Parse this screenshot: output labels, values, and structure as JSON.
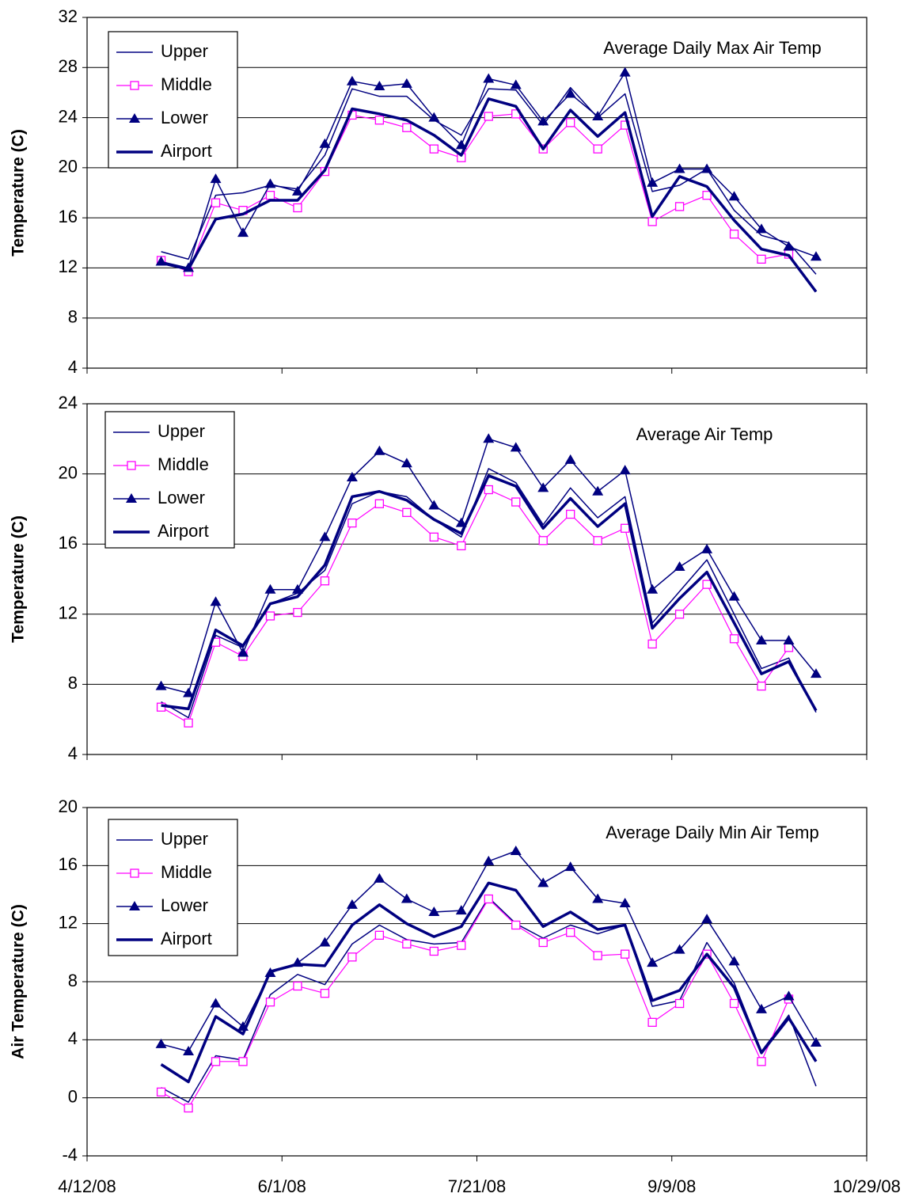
{
  "chart_data": [
    {
      "type": "line",
      "title": "Average Daily Max Air Temp",
      "ylabel": "Temperature (C)",
      "x": [
        "5/1/08",
        "5/8/08",
        "5/15/08",
        "5/22/08",
        "5/29/08",
        "6/5/08",
        "6/12/08",
        "6/19/08",
        "6/26/08",
        "7/3/08",
        "7/10/08",
        "7/17/08",
        "7/24/08",
        "7/31/08",
        "8/7/08",
        "8/14/08",
        "8/21/08",
        "8/28/08",
        "9/4/08",
        "9/11/08",
        "9/18/08",
        "9/25/08",
        "10/2/08",
        "10/9/08",
        "10/16/08"
      ],
      "xlim": [
        "4/12/08",
        "10/29/08"
      ],
      "xticks": [
        "4/12/08",
        "6/1/08",
        "7/21/08",
        "9/9/08",
        "10/29/08"
      ],
      "ylim": [
        4,
        32
      ],
      "yticks": [
        4,
        8,
        12,
        16,
        20,
        24,
        28,
        32
      ],
      "grid": true,
      "series": [
        {
          "name": "Upper",
          "color": "#000080",
          "marker": "none",
          "line_width": 1.5,
          "values": [
            13.3,
            12.7,
            17.8,
            18.0,
            18.6,
            18.3,
            21.0,
            26.3,
            25.7,
            25.7,
            23.8,
            22.6,
            26.3,
            26.2,
            23.4,
            26.4,
            24.0,
            25.9,
            18.1,
            18.6,
            19.9,
            16.6,
            14.6,
            14.0,
            11.5
          ]
        },
        {
          "name": "Middle",
          "color": "#ff00ff",
          "marker": "square",
          "line_width": 1.2,
          "values": [
            12.6,
            11.7,
            17.2,
            16.6,
            17.8,
            16.8,
            19.7,
            24.2,
            23.8,
            23.2,
            21.5,
            20.8,
            24.1,
            24.3,
            21.5,
            23.6,
            21.5,
            23.4,
            15.7,
            16.9,
            17.8,
            14.7,
            12.7,
            13.1,
            null
          ]
        },
        {
          "name": "Lower",
          "color": "#000080",
          "marker": "triangle",
          "line_width": 1.5,
          "values": [
            12.5,
            12.0,
            19.1,
            14.8,
            18.7,
            18.1,
            21.9,
            26.9,
            26.5,
            26.7,
            24.0,
            21.8,
            27.1,
            26.6,
            23.7,
            25.9,
            24.1,
            27.6,
            18.8,
            19.9,
            19.9,
            17.7,
            15.1,
            13.7,
            12.9
          ]
        },
        {
          "name": "Airport",
          "color": "#000080",
          "marker": "none",
          "line_width": 3.5,
          "values": [
            12.4,
            11.9,
            15.9,
            16.3,
            17.4,
            17.4,
            19.8,
            24.7,
            24.3,
            23.8,
            22.6,
            21.0,
            25.5,
            24.9,
            21.5,
            24.6,
            22.5,
            24.4,
            16.1,
            19.3,
            18.5,
            15.8,
            13.5,
            13.0,
            10.1
          ]
        }
      ]
    },
    {
      "type": "line",
      "title": "Average Air Temp",
      "ylabel": "Temperature (C)",
      "x": [
        "5/1/08",
        "5/8/08",
        "5/15/08",
        "5/22/08",
        "5/29/08",
        "6/5/08",
        "6/12/08",
        "6/19/08",
        "6/26/08",
        "7/3/08",
        "7/10/08",
        "7/17/08",
        "7/24/08",
        "7/31/08",
        "8/7/08",
        "8/14/08",
        "8/21/08",
        "8/28/08",
        "9/4/08",
        "9/11/08",
        "9/18/08",
        "9/25/08",
        "10/2/08",
        "10/9/08",
        "10/16/08"
      ],
      "xlim": [
        "4/12/08",
        "10/29/08"
      ],
      "xticks": [
        "4/12/08",
        "6/1/08",
        "7/21/08",
        "9/9/08",
        "10/29/08"
      ],
      "ylim": [
        4,
        24
      ],
      "yticks": [
        4,
        8,
        12,
        16,
        20,
        24
      ],
      "grid": true,
      "series": [
        {
          "name": "Upper",
          "color": "#000080",
          "marker": "none",
          "line_width": 1.5,
          "values": [
            7.0,
            6.1,
            10.8,
            10.1,
            12.6,
            13.2,
            14.5,
            18.3,
            19.0,
            18.7,
            17.4,
            16.4,
            20.3,
            19.5,
            17.1,
            19.2,
            17.5,
            18.7,
            11.5,
            13.3,
            15.1,
            12.0,
            8.9,
            9.5,
            6.4
          ]
        },
        {
          "name": "Middle",
          "color": "#ff00ff",
          "marker": "square",
          "line_width": 1.2,
          "values": [
            6.7,
            5.8,
            10.4,
            9.6,
            11.9,
            12.1,
            13.9,
            17.2,
            18.3,
            17.8,
            16.4,
            15.9,
            19.1,
            18.4,
            16.2,
            17.7,
            16.2,
            16.9,
            10.3,
            12.0,
            13.7,
            10.6,
            7.9,
            10.1,
            null
          ]
        },
        {
          "name": "Lower",
          "color": "#000080",
          "marker": "triangle",
          "line_width": 1.5,
          "values": [
            7.9,
            7.5,
            12.7,
            9.8,
            13.4,
            13.4,
            16.4,
            19.8,
            21.3,
            20.6,
            18.2,
            17.2,
            22.0,
            21.5,
            19.2,
            20.8,
            19.0,
            20.2,
            13.4,
            14.7,
            15.7,
            13.0,
            10.5,
            10.5,
            8.6
          ]
        },
        {
          "name": "Airport",
          "color": "#000080",
          "marker": "none",
          "line_width": 3.5,
          "values": [
            6.8,
            6.6,
            11.1,
            10.2,
            12.6,
            13.0,
            14.8,
            18.7,
            19.0,
            18.5,
            17.4,
            16.6,
            19.9,
            19.3,
            16.9,
            18.6,
            17.0,
            18.3,
            11.2,
            12.9,
            14.4,
            11.5,
            8.6,
            9.3,
            6.5
          ]
        }
      ]
    },
    {
      "type": "line",
      "title": "Average Daily Min Air Temp",
      "ylabel": "Air Temperature (C)",
      "x": [
        "5/1/08",
        "5/8/08",
        "5/15/08",
        "5/22/08",
        "5/29/08",
        "6/5/08",
        "6/12/08",
        "6/19/08",
        "6/26/08",
        "7/3/08",
        "7/10/08",
        "7/17/08",
        "7/24/08",
        "7/31/08",
        "8/7/08",
        "8/14/08",
        "8/21/08",
        "8/28/08",
        "9/4/08",
        "9/11/08",
        "9/18/08",
        "9/25/08",
        "10/2/08",
        "10/9/08",
        "10/16/08"
      ],
      "xlim": [
        "4/12/08",
        "10/29/08"
      ],
      "xticks": [
        "4/12/08",
        "6/1/08",
        "7/21/08",
        "9/9/08",
        "10/29/08"
      ],
      "ylim": [
        -4,
        20
      ],
      "yticks": [
        -4,
        0,
        4,
        8,
        12,
        16,
        20
      ],
      "grid": true,
      "series": [
        {
          "name": "Upper",
          "color": "#000080",
          "marker": "none",
          "line_width": 1.5,
          "values": [
            0.7,
            -0.3,
            2.9,
            2.6,
            7.1,
            8.5,
            7.8,
            10.6,
            11.9,
            10.9,
            10.6,
            10.7,
            13.8,
            12.0,
            11.0,
            11.9,
            11.3,
            11.9,
            6.3,
            6.7,
            10.7,
            7.9,
            3.2,
            5.7,
            0.8
          ]
        },
        {
          "name": "Middle",
          "color": "#ff00ff",
          "marker": "square",
          "line_width": 1.2,
          "values": [
            0.4,
            -0.7,
            2.5,
            2.5,
            6.6,
            7.7,
            7.2,
            9.7,
            11.2,
            10.6,
            10.1,
            10.5,
            13.7,
            11.9,
            10.7,
            11.4,
            9.8,
            9.9,
            5.2,
            6.5,
            9.9,
            6.5,
            2.5,
            6.8,
            null
          ]
        },
        {
          "name": "Lower",
          "color": "#000080",
          "marker": "triangle",
          "line_width": 1.5,
          "values": [
            3.7,
            3.2,
            6.5,
            4.9,
            8.6,
            9.3,
            10.7,
            13.3,
            15.1,
            13.7,
            12.8,
            12.9,
            16.3,
            17.0,
            14.8,
            15.9,
            13.7,
            13.4,
            9.3,
            10.2,
            12.3,
            9.4,
            6.1,
            7.0,
            3.8
          ]
        },
        {
          "name": "Airport",
          "color": "#000080",
          "marker": "none",
          "line_width": 3.5,
          "values": [
            2.3,
            1.1,
            5.6,
            4.4,
            8.7,
            9.2,
            9.1,
            11.9,
            13.3,
            12.0,
            11.1,
            11.8,
            14.8,
            14.3,
            11.8,
            12.8,
            11.6,
            11.9,
            6.7,
            7.4,
            9.9,
            7.6,
            3.1,
            5.5,
            2.5
          ]
        }
      ]
    }
  ]
}
